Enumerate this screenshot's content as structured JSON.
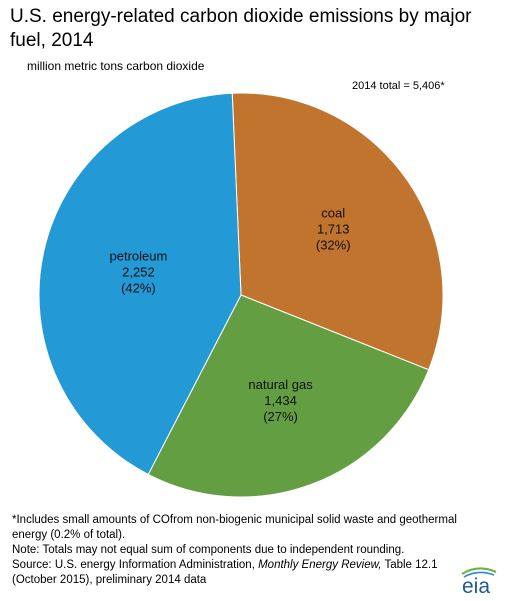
{
  "header": {
    "title": "U.S. energy-related carbon dioxide emissions by major fuel, 2014",
    "subtitle": "million metric tons carbon dioxide",
    "total": "2014 total = 5,406*"
  },
  "chart_data": {
    "type": "pie",
    "slices": [
      {
        "name": "coal",
        "value": 1713,
        "value_label": "1,713",
        "percent_label": "(32%)",
        "color": "#C0742D"
      },
      {
        "name": "natural gas",
        "value": 1434,
        "value_label": "1,434",
        "percent_label": "(27%)",
        "color": "#639E43"
      },
      {
        "name": "petroleum",
        "value": 2252,
        "value_label": "2,252",
        "percent_label": "(42%)",
        "color": "#2399D6"
      }
    ]
  },
  "notes": {
    "line1_prefix": "*Includes small amounts of CO",
    "line1_suffix": "from non-biogenic municipal solid waste and geothermal energy (0.2% of total).",
    "line2": "Note: Totals may not equal sum of components due to independent rounding.",
    "line3_prefix": "Source: U.S. energy Information Administration, ",
    "line3_italic": "Monthly Energy Review,",
    "line3_suffix": " Table 12.1 (October 2015), preliminary 2014 data"
  },
  "logo": {
    "text": "eia",
    "icon": "eia-logo-icon"
  }
}
